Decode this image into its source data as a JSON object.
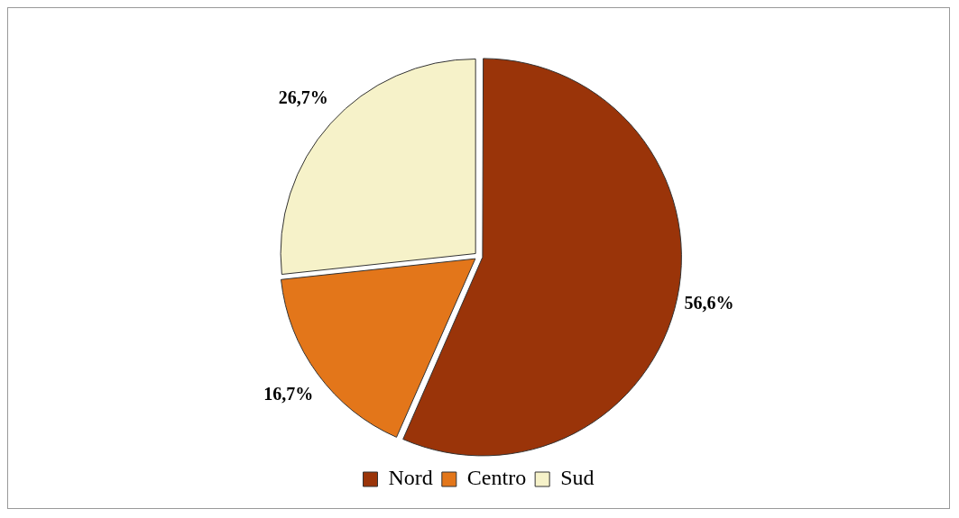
{
  "chart_data": {
    "type": "pie",
    "categories": [
      "Nord",
      "Centro",
      "Sud"
    ],
    "values": [
      56.6,
      16.7,
      26.7
    ],
    "colors": [
      "#9a3409",
      "#e3761a",
      "#f6f2c9"
    ],
    "value_labels": [
      "56,6%",
      "16,7%",
      "26,7%"
    ],
    "legend": "bottom"
  }
}
